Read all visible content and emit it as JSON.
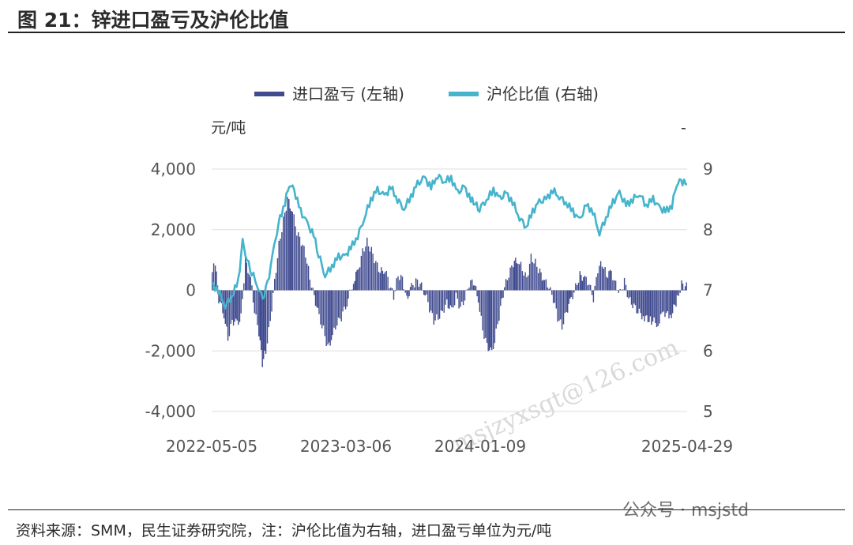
{
  "figure": {
    "title": "图 21：锌进口盈亏及沪伦比值",
    "source": "资料来源：SMM，民生证券研究院，注：沪伦比值为右轴，进口盈亏单位为元/吨",
    "brand_watermark": "公众号 · msjstd",
    "diagonal_watermark": "msjzyxsgt@126.com"
  },
  "chart_data": {
    "type": "bar+line",
    "left_axis_unit": "元/吨",
    "right_axis_unit": "-",
    "left_ylim": [
      -4000,
      4000
    ],
    "right_ylim": [
      5,
      9
    ],
    "left_ticks": [
      "4,000",
      "2,000",
      "0",
      "-2,000",
      "-4,000"
    ],
    "right_ticks": [
      "9",
      "8",
      "7",
      "6",
      "5"
    ],
    "x_tick_labels": [
      "2022-05-05",
      "2023-03-06",
      "2024-01-09",
      "2025-04-29"
    ],
    "x_range": [
      "2022-05-05",
      "2025-04-29"
    ],
    "legend": {
      "placement": "top-center"
    },
    "colors": {
      "import_profit": "#3f4a8f",
      "ratio": "#45b4cc",
      "grid": "#dddddd"
    },
    "series": [
      {
        "name": "进口盈亏 (左轴)",
        "kind": "bar",
        "axis": "left",
        "points": [
          [
            "2022-05-05",
            600
          ],
          [
            "2022-05-12",
            900
          ],
          [
            "2022-05-20",
            -300
          ],
          [
            "2022-06-01",
            -800
          ],
          [
            "2022-06-10",
            -1600
          ],
          [
            "2022-06-20",
            -1000
          ],
          [
            "2022-07-01",
            -1100
          ],
          [
            "2022-07-10",
            -900
          ],
          [
            "2022-07-20",
            1000
          ],
          [
            "2022-08-01",
            400
          ],
          [
            "2022-08-10",
            -700
          ],
          [
            "2022-08-20",
            -1400
          ],
          [
            "2022-08-28",
            -2400
          ],
          [
            "2022-09-05",
            -2000
          ],
          [
            "2022-09-15",
            -1000
          ],
          [
            "2022-09-25",
            300
          ],
          [
            "2022-10-05",
            1500
          ],
          [
            "2022-10-15",
            2300
          ],
          [
            "2022-10-25",
            3000
          ],
          [
            "2022-11-05",
            2600
          ],
          [
            "2022-11-15",
            1900
          ],
          [
            "2022-11-25",
            1600
          ],
          [
            "2022-12-05",
            1200
          ],
          [
            "2022-12-15",
            400
          ],
          [
            "2022-12-25",
            -200
          ],
          [
            "2023-01-05",
            -900
          ],
          [
            "2023-01-15",
            -1300
          ],
          [
            "2023-01-25",
            -1900
          ],
          [
            "2023-02-05",
            -1500
          ],
          [
            "2023-02-15",
            -1100
          ],
          [
            "2023-02-25",
            -900
          ],
          [
            "2023-03-10",
            -400
          ],
          [
            "2023-03-25",
            300
          ],
          [
            "2023-04-05",
            700
          ],
          [
            "2023-04-15",
            1300
          ],
          [
            "2023-04-25",
            1600
          ],
          [
            "2023-05-05",
            1300
          ],
          [
            "2023-05-15",
            900
          ],
          [
            "2023-05-25",
            600
          ],
          [
            "2023-06-05",
            700
          ],
          [
            "2023-06-15",
            200
          ],
          [
            "2023-06-25",
            -200
          ],
          [
            "2023-07-05",
            500
          ],
          [
            "2023-07-15",
            400
          ],
          [
            "2023-07-25",
            -300
          ],
          [
            "2023-08-05",
            100
          ],
          [
            "2023-08-15",
            300
          ],
          [
            "2023-08-25",
            200
          ],
          [
            "2023-09-05",
            -100
          ],
          [
            "2023-09-15",
            -600
          ],
          [
            "2023-09-25",
            -1000
          ],
          [
            "2023-10-05",
            -900
          ],
          [
            "2023-10-15",
            -700
          ],
          [
            "2023-10-25",
            -400
          ],
          [
            "2023-11-05",
            -700
          ],
          [
            "2023-11-15",
            -200
          ],
          [
            "2023-11-25",
            -600
          ],
          [
            "2023-12-05",
            -300
          ],
          [
            "2023-12-15",
            200
          ],
          [
            "2023-12-25",
            300
          ],
          [
            "2024-01-05",
            -300
          ],
          [
            "2024-01-15",
            -1300
          ],
          [
            "2024-01-25",
            -1800
          ],
          [
            "2024-02-05",
            -2100
          ],
          [
            "2024-02-15",
            -1400
          ],
          [
            "2024-02-25",
            -600
          ],
          [
            "2024-03-05",
            100
          ],
          [
            "2024-03-15",
            500
          ],
          [
            "2024-03-25",
            900
          ],
          [
            "2024-04-05",
            1000
          ],
          [
            "2024-04-15",
            700
          ],
          [
            "2024-04-25",
            400
          ],
          [
            "2024-05-05",
            1100
          ],
          [
            "2024-05-15",
            900
          ],
          [
            "2024-05-25",
            600
          ],
          [
            "2024-06-05",
            300
          ],
          [
            "2024-06-15",
            100
          ],
          [
            "2024-06-25",
            -300
          ],
          [
            "2024-07-05",
            -900
          ],
          [
            "2024-07-15",
            -1200
          ],
          [
            "2024-07-25",
            -700
          ],
          [
            "2024-08-05",
            -300
          ],
          [
            "2024-08-15",
            100
          ],
          [
            "2024-08-25",
            500
          ],
          [
            "2024-09-05",
            400
          ],
          [
            "2024-09-15",
            200
          ],
          [
            "2024-09-25",
            -300
          ],
          [
            "2024-10-05",
            700
          ],
          [
            "2024-10-15",
            900
          ],
          [
            "2024-10-25",
            500
          ],
          [
            "2024-11-05",
            600
          ],
          [
            "2024-11-15",
            200
          ],
          [
            "2024-11-25",
            -100
          ],
          [
            "2024-12-05",
            300
          ],
          [
            "2024-12-15",
            -300
          ],
          [
            "2025-01-05",
            -700
          ],
          [
            "2025-01-20",
            -900
          ],
          [
            "2025-02-05",
            -1000
          ],
          [
            "2025-02-20",
            -1100
          ],
          [
            "2025-03-05",
            -700
          ],
          [
            "2025-03-20",
            -900
          ],
          [
            "2025-04-05",
            -300
          ],
          [
            "2025-04-15",
            200
          ],
          [
            "2025-04-29",
            100
          ]
        ]
      },
      {
        "name": "沪伦比值 (右轴)",
        "kind": "line",
        "axis": "right",
        "points": [
          [
            "2022-05-05",
            7.1
          ],
          [
            "2022-05-20",
            7.0
          ],
          [
            "2022-06-05",
            6.75
          ],
          [
            "2022-06-20",
            6.9
          ],
          [
            "2022-07-05",
            7.15
          ],
          [
            "2022-07-15",
            7.8
          ],
          [
            "2022-07-25",
            7.5
          ],
          [
            "2022-08-05",
            7.3
          ],
          [
            "2022-08-20",
            7.05
          ],
          [
            "2022-08-30",
            6.85
          ],
          [
            "2022-09-10",
            7.1
          ],
          [
            "2022-09-25",
            7.7
          ],
          [
            "2022-10-05",
            8.1
          ],
          [
            "2022-10-20",
            8.45
          ],
          [
            "2022-10-30",
            8.75
          ],
          [
            "2022-11-10",
            8.65
          ],
          [
            "2022-11-25",
            8.3
          ],
          [
            "2022-12-10",
            8.1
          ],
          [
            "2022-12-25",
            7.9
          ],
          [
            "2023-01-05",
            7.6
          ],
          [
            "2023-01-20",
            7.25
          ],
          [
            "2023-02-05",
            7.4
          ],
          [
            "2023-02-20",
            7.55
          ],
          [
            "2023-03-06",
            7.55
          ],
          [
            "2023-03-20",
            7.7
          ],
          [
            "2023-04-05",
            7.9
          ],
          [
            "2023-04-20",
            8.2
          ],
          [
            "2023-05-05",
            8.5
          ],
          [
            "2023-05-20",
            8.65
          ],
          [
            "2023-06-05",
            8.55
          ],
          [
            "2023-06-20",
            8.7
          ],
          [
            "2023-07-05",
            8.5
          ],
          [
            "2023-07-20",
            8.35
          ],
          [
            "2023-08-05",
            8.55
          ],
          [
            "2023-08-20",
            8.75
          ],
          [
            "2023-09-05",
            8.85
          ],
          [
            "2023-09-20",
            8.7
          ],
          [
            "2023-10-05",
            8.9
          ],
          [
            "2023-10-20",
            8.8
          ],
          [
            "2023-11-05",
            8.85
          ],
          [
            "2023-11-20",
            8.6
          ],
          [
            "2023-12-05",
            8.7
          ],
          [
            "2023-12-20",
            8.5
          ],
          [
            "2024-01-09",
            8.35
          ],
          [
            "2024-01-25",
            8.5
          ],
          [
            "2024-02-10",
            8.65
          ],
          [
            "2024-02-25",
            8.5
          ],
          [
            "2024-03-10",
            8.6
          ],
          [
            "2024-03-25",
            8.45
          ],
          [
            "2024-04-10",
            8.2
          ],
          [
            "2024-04-25",
            8.05
          ],
          [
            "2024-05-10",
            8.3
          ],
          [
            "2024-05-25",
            8.45
          ],
          [
            "2024-06-10",
            8.5
          ],
          [
            "2024-06-25",
            8.65
          ],
          [
            "2024-07-10",
            8.55
          ],
          [
            "2024-07-25",
            8.45
          ],
          [
            "2024-08-10",
            8.3
          ],
          [
            "2024-08-25",
            8.15
          ],
          [
            "2024-09-10",
            8.4
          ],
          [
            "2024-09-25",
            8.3
          ],
          [
            "2024-10-10",
            7.95
          ],
          [
            "2024-10-25",
            8.2
          ],
          [
            "2024-11-10",
            8.45
          ],
          [
            "2024-11-25",
            8.6
          ],
          [
            "2024-12-10",
            8.4
          ],
          [
            "2024-12-25",
            8.5
          ],
          [
            "2025-01-10",
            8.6
          ],
          [
            "2025-01-25",
            8.4
          ],
          [
            "2025-02-10",
            8.5
          ],
          [
            "2025-02-25",
            8.35
          ],
          [
            "2025-03-10",
            8.3
          ],
          [
            "2025-03-25",
            8.4
          ],
          [
            "2025-04-05",
            8.75
          ],
          [
            "2025-04-15",
            8.8
          ],
          [
            "2025-04-29",
            8.75
          ]
        ]
      }
    ]
  }
}
